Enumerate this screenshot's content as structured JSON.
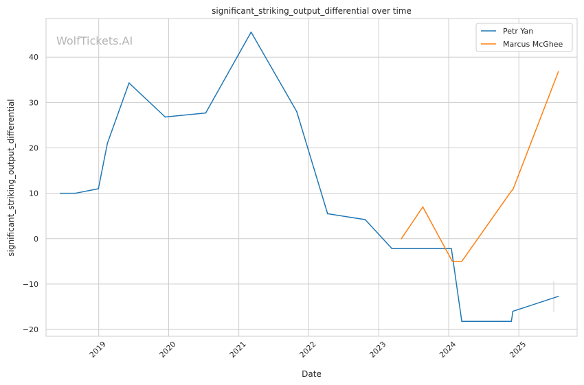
{
  "watermark": "WolfTickets.AI",
  "chart_data": {
    "type": "line",
    "title": "significant_striking_output_differential over time",
    "xlabel": "Date",
    "ylabel": "significant_striking_output_differential",
    "xlim": [
      "2018-04-01",
      "2025-11-01"
    ],
    "ylim": [
      -21.5,
      48.5
    ],
    "x_ticks": [
      "2019-01-01",
      "2020-01-01",
      "2021-01-01",
      "2022-01-01",
      "2023-01-01",
      "2024-01-01",
      "2025-01-01"
    ],
    "x_tick_labels": [
      "2019",
      "2020",
      "2021",
      "2022",
      "2023",
      "2024",
      "2025"
    ],
    "y_ticks": [
      -20,
      -10,
      0,
      10,
      20,
      30,
      40
    ],
    "y_tick_labels": [
      "−20",
      "−10",
      "0",
      "10",
      "20",
      "30",
      "40"
    ],
    "grid": true,
    "legend_position": "top-right",
    "series": [
      {
        "name": "Petr Yan",
        "color": "#1f77b4",
        "points": [
          {
            "x": "2018-06-15",
            "y": 10.0
          },
          {
            "x": "2018-09-01",
            "y": 10.0
          },
          {
            "x": "2018-12-30",
            "y": 11.0
          },
          {
            "x": "2019-02-15",
            "y": 21.0
          },
          {
            "x": "2019-06-08",
            "y": 34.3
          },
          {
            "x": "2019-12-14",
            "y": 26.8
          },
          {
            "x": "2020-07-12",
            "y": 27.7
          },
          {
            "x": "2021-03-06",
            "y": 45.5
          },
          {
            "x": "2021-10-30",
            "y": 28.0
          },
          {
            "x": "2022-04-09",
            "y": 5.5
          },
          {
            "x": "2022-10-22",
            "y": 4.2
          },
          {
            "x": "2023-03-11",
            "y": -2.2
          },
          {
            "x": "2024-01-15",
            "y": -2.2
          },
          {
            "x": "2024-03-09",
            "y": -18.2
          },
          {
            "x": "2024-11-23",
            "y": -18.2
          },
          {
            "x": "2024-12-01",
            "y": -16.0
          },
          {
            "x": "2025-07-26",
            "y": -12.7
          }
        ]
      },
      {
        "name": "Marcus McGhee",
        "color": "#ff7f0e",
        "points": [
          {
            "x": "2023-04-29",
            "y": 0.0
          },
          {
            "x": "2023-08-19",
            "y": 7.0
          },
          {
            "x": "2024-01-20",
            "y": -5.0
          },
          {
            "x": "2024-03-09",
            "y": -5.0
          },
          {
            "x": "2024-11-23",
            "y": 10.5
          },
          {
            "x": "2024-12-01",
            "y": 10.8
          },
          {
            "x": "2025-07-26",
            "y": 36.8
          }
        ]
      }
    ]
  }
}
